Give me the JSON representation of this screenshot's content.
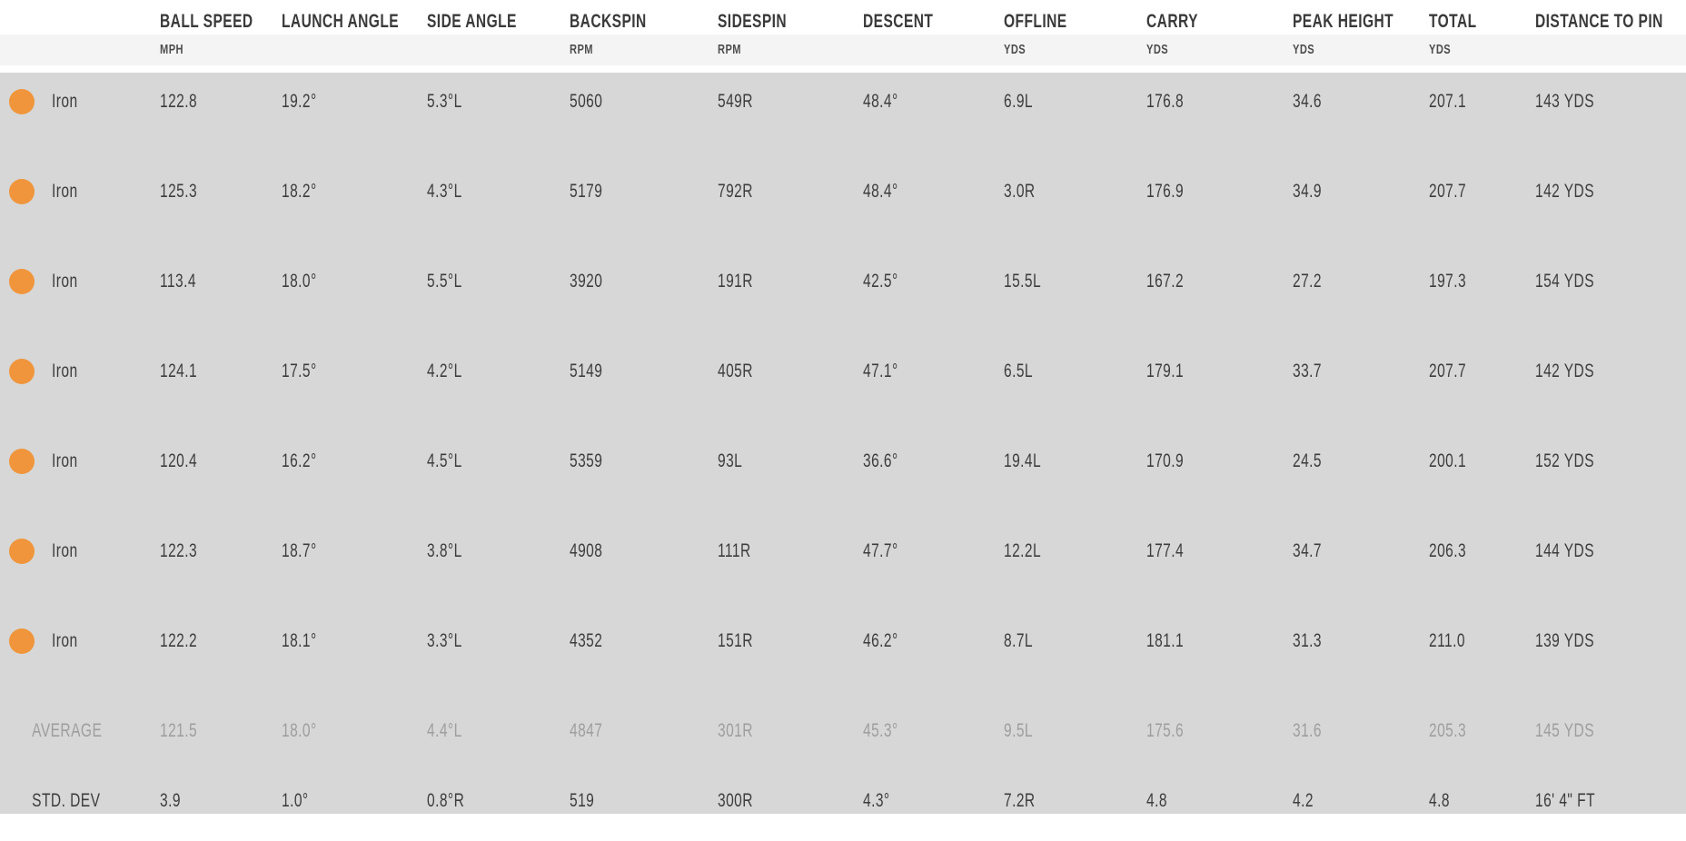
{
  "colors": {
    "club_dot_orange": "#F0953B",
    "data_background": "#d7d7d7",
    "units_band_background": "#f4f4f4",
    "text_dark": "#3d3d3d",
    "average_text_gray": "#9e9e9e"
  },
  "table": {
    "columns": [
      {
        "key": "ball_speed",
        "label": "BALL SPEED",
        "unit": "MPH"
      },
      {
        "key": "launch_angle",
        "label": "LAUNCH ANGLE",
        "unit": ""
      },
      {
        "key": "side_angle",
        "label": "SIDE ANGLE",
        "unit": ""
      },
      {
        "key": "backspin",
        "label": "BACKSPIN",
        "unit": "RPM"
      },
      {
        "key": "sidespin",
        "label": "SIDESPIN",
        "unit": "RPM"
      },
      {
        "key": "descent",
        "label": "DESCENT",
        "unit": ""
      },
      {
        "key": "offline",
        "label": "OFFLINE",
        "unit": "YDS"
      },
      {
        "key": "carry",
        "label": "CARRY",
        "unit": "YDS"
      },
      {
        "key": "peak_height",
        "label": "PEAK HEIGHT",
        "unit": "YDS"
      },
      {
        "key": "total",
        "label": "TOTAL",
        "unit": "YDS"
      },
      {
        "key": "distance_to_pin",
        "label": "DISTANCE TO PIN",
        "unit": ""
      }
    ],
    "rows": [
      {
        "type": "shot",
        "label": "Iron",
        "values": [
          "122.8",
          "19.2°",
          "5.3°L",
          "5060",
          "549R",
          "48.4°",
          "6.9L",
          "176.8",
          "34.6",
          "207.1",
          "143 YDS"
        ]
      },
      {
        "type": "shot",
        "label": "Iron",
        "values": [
          "125.3",
          "18.2°",
          "4.3°L",
          "5179",
          "792R",
          "48.4°",
          "3.0R",
          "176.9",
          "34.9",
          "207.7",
          "142 YDS"
        ]
      },
      {
        "type": "shot",
        "label": "Iron",
        "values": [
          "113.4",
          "18.0°",
          "5.5°L",
          "3920",
          "191R",
          "42.5°",
          "15.5L",
          "167.2",
          "27.2",
          "197.3",
          "154 YDS"
        ]
      },
      {
        "type": "shot",
        "label": "Iron",
        "values": [
          "124.1",
          "17.5°",
          "4.2°L",
          "5149",
          "405R",
          "47.1°",
          "6.5L",
          "179.1",
          "33.7",
          "207.7",
          "142 YDS"
        ]
      },
      {
        "type": "shot",
        "label": "Iron",
        "values": [
          "120.4",
          "16.2°",
          "4.5°L",
          "5359",
          "93L",
          "36.6°",
          "19.4L",
          "170.9",
          "24.5",
          "200.1",
          "152 YDS"
        ]
      },
      {
        "type": "shot",
        "label": "Iron",
        "values": [
          "122.3",
          "18.7°",
          "3.8°L",
          "4908",
          "111R",
          "47.7°",
          "12.2L",
          "177.4",
          "34.7",
          "206.3",
          "144 YDS"
        ]
      },
      {
        "type": "shot",
        "label": "Iron",
        "values": [
          "122.2",
          "18.1°",
          "3.3°L",
          "4352",
          "151R",
          "46.2°",
          "8.7L",
          "181.1",
          "31.3",
          "211.0",
          "139 YDS"
        ]
      },
      {
        "type": "average",
        "label": "AVERAGE",
        "values": [
          "121.5",
          "18.0°",
          "4.4°L",
          "4847",
          "301R",
          "45.3°",
          "9.5L",
          "175.6",
          "31.6",
          "205.3",
          "145 YDS"
        ]
      },
      {
        "type": "stddev",
        "label": "STD. DEV",
        "values": [
          "3.9",
          "1.0°",
          "0.8°R",
          "519",
          "300R",
          "4.3°",
          "7.2R",
          "4.8",
          "4.2",
          "4.8",
          "16' 4\" FT"
        ]
      }
    ]
  }
}
